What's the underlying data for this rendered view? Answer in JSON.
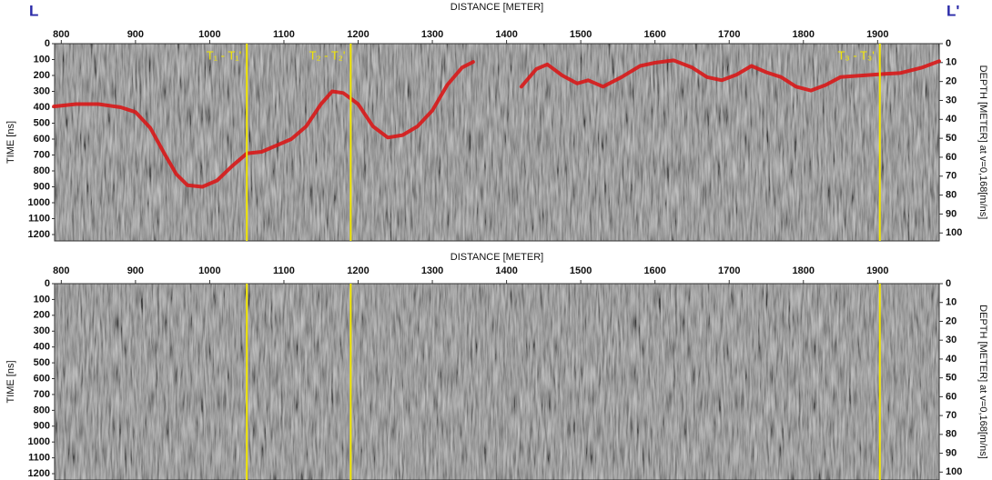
{
  "chart_data": [
    {
      "type": "line",
      "start_label": "L",
      "end_label": "L'",
      "x_label": "DISTANCE [METER]",
      "y_label": "TIME [ns]",
      "y2_label": "DEPTH [METER] at v=0,168[m/ns]",
      "xlim": [
        791,
        1983
      ],
      "xticks": [
        800,
        900,
        1000,
        1100,
        1200,
        1300,
        1400,
        1500,
        1600,
        1700,
        1800,
        1900
      ],
      "ylim": [
        1240,
        0
      ],
      "yticks": [
        0,
        100,
        200,
        300,
        400,
        500,
        600,
        700,
        800,
        900,
        1000,
        1100,
        1200
      ],
      "y2lim": [
        104.2,
        0
      ],
      "y2ticks": [
        0,
        10,
        20,
        30,
        40,
        50,
        60,
        70,
        80,
        90,
        100
      ],
      "markers": [
        {
          "x": 1050,
          "label": "T₁ - T₁'"
        },
        {
          "x": 1190,
          "label": "T₂ - T₂'"
        },
        {
          "x": 1903,
          "label": "T₃ - T₃'"
        }
      ],
      "marker_color": "#f2e600",
      "series": [
        {
          "color": "#d81818",
          "x": [
            790,
            820,
            850,
            880,
            900,
            920,
            940,
            955,
            970,
            990,
            1010,
            1030,
            1050,
            1070,
            1090,
            1110,
            1130,
            1150,
            1165,
            1180,
            1200,
            1220,
            1240,
            1260,
            1280,
            1300,
            1320,
            1340,
            1355,
            1390,
            1420,
            1440,
            1455,
            1475,
            1495,
            1510,
            1530,
            1555,
            1580,
            1600,
            1625,
            1650,
            1670,
            1690,
            1710,
            1730,
            1750,
            1770,
            1790,
            1810,
            1830,
            1850,
            1880,
            1910,
            1930,
            1960,
            1983
          ],
          "values": [
            395,
            380,
            380,
            400,
            430,
            530,
            700,
            820,
            890,
            900,
            860,
            770,
            690,
            680,
            640,
            600,
            520,
            380,
            300,
            310,
            380,
            520,
            590,
            575,
            520,
            420,
            260,
            150,
            115,
            null,
            270,
            160,
            130,
            200,
            250,
            230,
            270,
            210,
            140,
            120,
            105,
            150,
            210,
            230,
            195,
            140,
            180,
            210,
            270,
            295,
            260,
            210,
            200,
            190,
            185,
            150,
            110
          ]
        }
      ]
    },
    {
      "type": "line",
      "x_label": "DISTANCE [METER]",
      "y_label": "TIME [ns]",
      "y2_label": "DEPTH [METER] at v=0,168[m/ns]",
      "xlim": [
        791,
        1983
      ],
      "xticks": [
        800,
        900,
        1000,
        1100,
        1200,
        1300,
        1400,
        1500,
        1600,
        1700,
        1800,
        1900
      ],
      "ylim": [
        1240,
        0
      ],
      "yticks": [
        0,
        100,
        200,
        300,
        400,
        500,
        600,
        700,
        800,
        900,
        1000,
        1100,
        1200
      ],
      "y2lim": [
        104.2,
        0
      ],
      "y2ticks": [
        0,
        10,
        20,
        30,
        40,
        50,
        60,
        70,
        80,
        90,
        100
      ],
      "markers": [
        {
          "x": 1050
        },
        {
          "x": 1190
        },
        {
          "x": 1903
        }
      ],
      "marker_color": "#f2e600",
      "series": []
    }
  ]
}
